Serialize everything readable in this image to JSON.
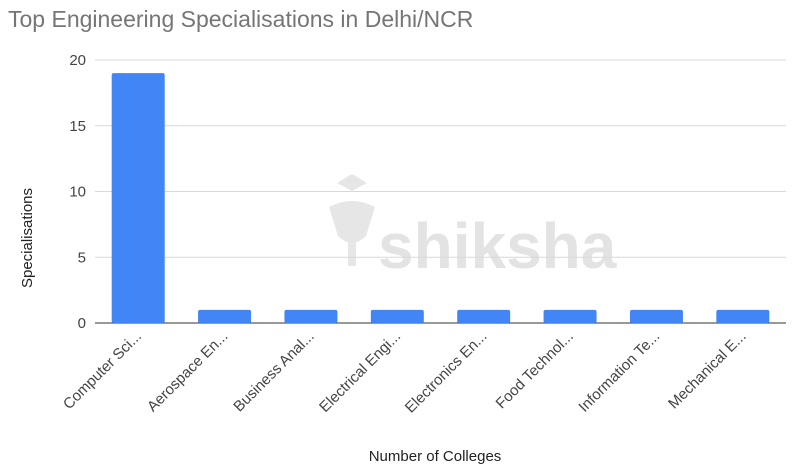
{
  "chart_data": {
    "type": "bar",
    "title": "Top Engineering Specialisations in Delhi/NCR",
    "xlabel": "Number of Colleges",
    "ylabel": "Specialisations",
    "categories": [
      "Computer Sci...",
      "Aerospace En...",
      "Business Anal...",
      "Electrical Engi...",
      "Electronics En...",
      "Food Technol...",
      "Information Te...",
      "Mechanical E..."
    ],
    "values": [
      19,
      1,
      1,
      1,
      1,
      1,
      1,
      1
    ],
    "ylim": [
      0,
      20
    ],
    "yticks": [
      "0",
      "5",
      "10",
      "15",
      "20"
    ],
    "grid": true,
    "bar_color": "#4285f4"
  },
  "watermark": {
    "text": "shiksha",
    "icon": "shiksha-logo-icon"
  }
}
